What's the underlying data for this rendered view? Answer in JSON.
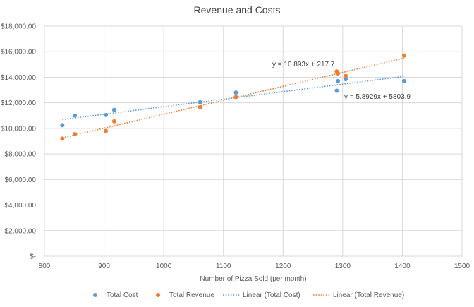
{
  "chart_data": {
    "type": "scatter",
    "title": "Revenue and Costs",
    "xlabel": "Number of Pizza Sold (per month)",
    "ylabel": "",
    "xlim": [
      800,
      1500
    ],
    "ylim": [
      0,
      18000
    ],
    "x_ticks": [
      "800",
      "900",
      "1000",
      "1100",
      "1200",
      "1300",
      "1400",
      "1500"
    ],
    "y_ticks": [
      "$-",
      "$2,000.00",
      "$4,000.00",
      "$6,000.00",
      "$8,000.00",
      "$10,000.00",
      "$12,000.00",
      "$14,000.00",
      "$16,000.00",
      "$18,000.00"
    ],
    "grid": true,
    "legend_position": "bottom",
    "series": [
      {
        "name": "Total Cost",
        "color": "#5B9BD5",
        "points": [
          [
            830,
            10250
          ],
          [
            851,
            11000
          ],
          [
            903,
            11050
          ],
          [
            917,
            11450
          ],
          [
            1061,
            12050
          ],
          [
            1121,
            12800
          ],
          [
            1290,
            12950
          ],
          [
            1292,
            13700
          ],
          [
            1305,
            13850
          ],
          [
            1403,
            13700
          ]
        ]
      },
      {
        "name": "Total Revenue",
        "color": "#ED7D31",
        "points": [
          [
            830,
            9200
          ],
          [
            851,
            9550
          ],
          [
            903,
            9800
          ],
          [
            917,
            10550
          ],
          [
            1061,
            11650
          ],
          [
            1121,
            12450
          ],
          [
            1290,
            14450
          ],
          [
            1292,
            14300
          ],
          [
            1305,
            14100
          ],
          [
            1403,
            15700
          ]
        ]
      }
    ],
    "trendlines": [
      {
        "name": "Linear (Total Cost)",
        "color": "#5B9BD5",
        "slope": 5.8929,
        "intercept": 5803.9,
        "x_range": [
          830,
          1403
        ],
        "equation": "y = 5.8929x + 5803.9"
      },
      {
        "name": "Linear (Total Revenue)",
        "color": "#ED7D31",
        "slope": 10.893,
        "intercept": 217.7,
        "x_range": [
          830,
          1403
        ],
        "equation": "y = 10.893x + 217.7"
      }
    ]
  }
}
